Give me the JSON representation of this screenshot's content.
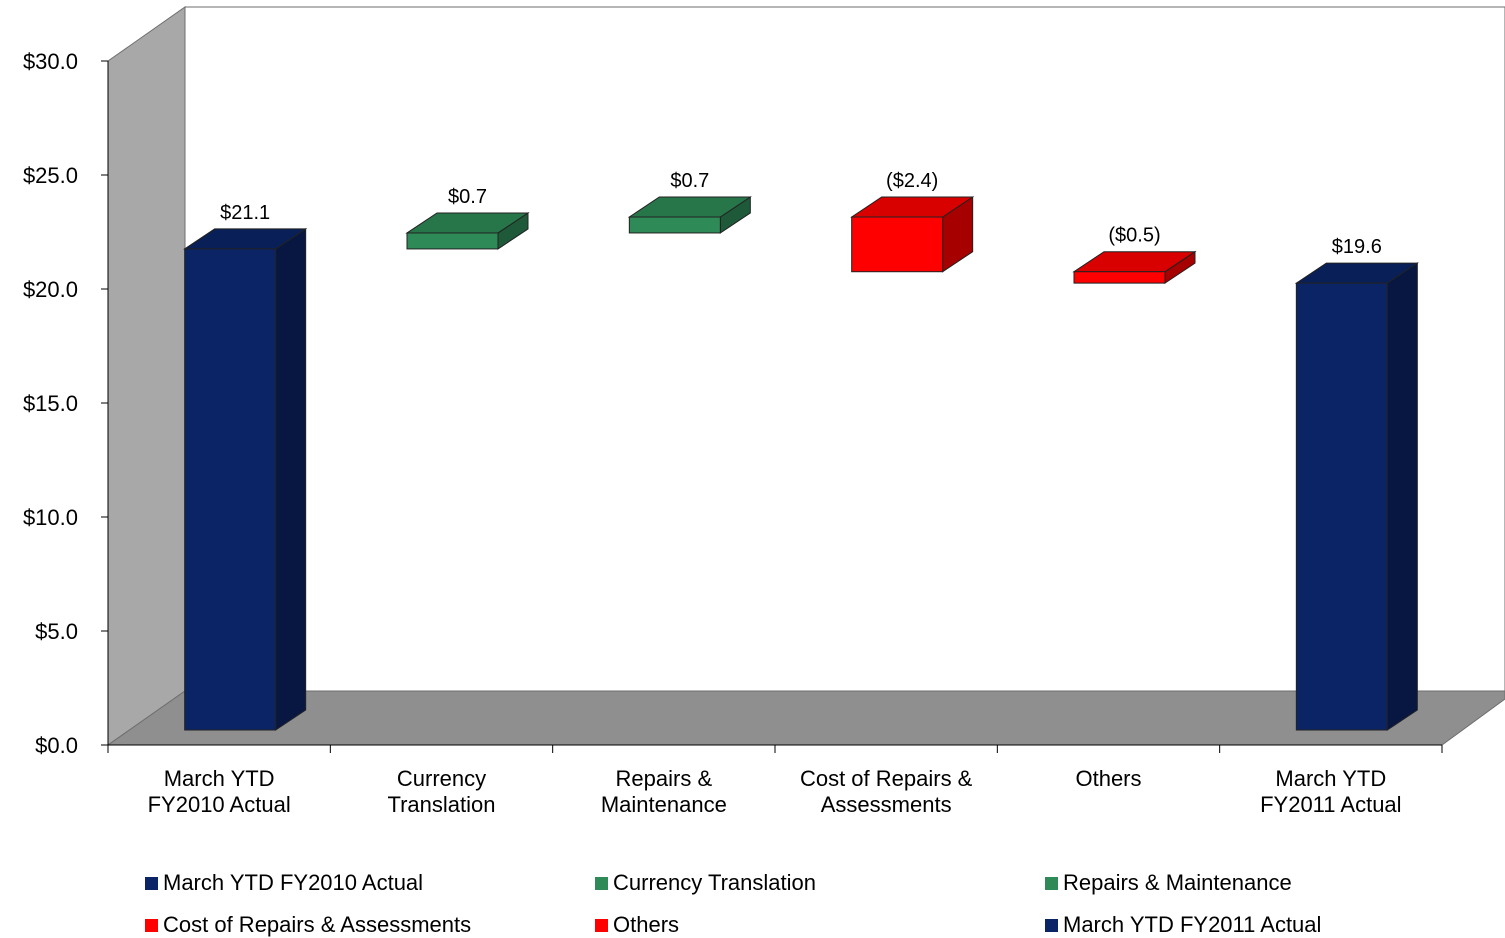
{
  "chart_data": {
    "type": "bar",
    "subtype": "waterfall-3d",
    "categories": [
      [
        "March YTD",
        "FY2010 Actual"
      ],
      [
        "Currency",
        "Translation"
      ],
      [
        "Repairs &",
        "Maintenance"
      ],
      [
        "Cost of Repairs &",
        "Assessments"
      ],
      [
        "Others"
      ],
      [
        "March YTD",
        "FY2011 Actual"
      ]
    ],
    "bars": [
      {
        "name": "March YTD FY2010 Actual",
        "start": 0,
        "end": 21.1,
        "label": "$21.1",
        "color": "#0b2466"
      },
      {
        "name": "Currency Translation",
        "start": 21.1,
        "end": 21.8,
        "label": "$0.7",
        "color": "#2e8b57"
      },
      {
        "name": "Repairs & Maintenance",
        "start": 21.8,
        "end": 22.5,
        "label": "$0.7",
        "color": "#2e8b57"
      },
      {
        "name": "Cost of Repairs & Assessments",
        "start": 22.5,
        "end": 20.1,
        "label": "($2.4)",
        "color": "#ff0000"
      },
      {
        "name": "Others",
        "start": 20.1,
        "end": 19.6,
        "label": "($0.5)",
        "color": "#ff0000"
      },
      {
        "name": "March YTD FY2011 Actual",
        "start": 0,
        "end": 19.6,
        "label": "$19.6",
        "color": "#0b2466"
      }
    ],
    "y_ticks": [
      "$0.0",
      "$5.0",
      "$10.0",
      "$15.0",
      "$20.0",
      "$25.0",
      "$30.0"
    ],
    "ylim": [
      0,
      30
    ],
    "legend": [
      {
        "label": "March YTD FY2010 Actual",
        "color": "#0b2466"
      },
      {
        "label": "Currency Translation",
        "color": "#2e8b57"
      },
      {
        "label": "Repairs & Maintenance",
        "color": "#2e8b57"
      },
      {
        "label": "Cost of Repairs & Assessments",
        "color": "#ff0000"
      },
      {
        "label": "Others",
        "color": "#ff0000"
      },
      {
        "label": "March YTD FY2011 Actual",
        "color": "#0b2466"
      }
    ],
    "legend_position": "bottom",
    "grid": false
  }
}
